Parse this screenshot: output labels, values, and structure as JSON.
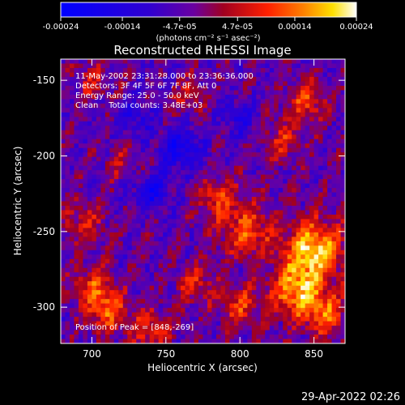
{
  "colorbar": {
    "ticks": [
      "-0.00024",
      "-0.00014",
      "-4.7e-05",
      "4.7e-05",
      "0.00014",
      "0.00024"
    ],
    "unit_label": "(photons cm⁻² s⁻¹ asec⁻²)",
    "range": [
      -0.00024,
      0.00024
    ]
  },
  "footer": {
    "timestamp": "29-Apr-2022 02:26"
  },
  "chart_data": {
    "type": "heatmap",
    "title": "Reconstructed RHESSI Image",
    "xlabel": "Heliocentric X (arcsec)",
    "ylabel": "Heliocentric Y (arcsec)",
    "xlim": [
      679,
      871
    ],
    "ylim": [
      -324,
      -136
    ],
    "xticks": [
      700,
      750,
      800,
      850
    ],
    "yticks": [
      -150,
      -200,
      -250,
      -300
    ],
    "annotations": [
      "11-May-2002 23:31:28.000 to 23:36:36.000",
      "Detectors: 3F 4F 5F 6F 7F 8F, Att 0",
      "Energy Range: 25.0 - 50.0 keV",
      "Clean    Total counts: 3.48E+03"
    ],
    "peak_label": "Position of Peak = [848,-269]",
    "peak": [
      848,
      -269
    ],
    "grid": false,
    "colormap": "blue-purple-red-yellow-white",
    "intensity_regions": [
      {
        "x": 850,
        "y": -262,
        "sigma": 14,
        "value": 0.00024
      },
      {
        "x": 838,
        "y": -290,
        "sigma": 12,
        "value": 0.0002
      },
      {
        "x": 858,
        "y": -305,
        "sigma": 10,
        "value": 0.00016
      },
      {
        "x": 805,
        "y": -250,
        "sigma": 12,
        "value": 0.00015
      },
      {
        "x": 785,
        "y": -228,
        "sigma": 10,
        "value": 0.00012
      },
      {
        "x": 845,
        "y": -165,
        "sigma": 10,
        "value": 0.00013
      },
      {
        "x": 828,
        "y": -190,
        "sigma": 9,
        "value": 0.0001
      },
      {
        "x": 710,
        "y": -302,
        "sigma": 10,
        "value": 0.00016
      },
      {
        "x": 700,
        "y": -285,
        "sigma": 9,
        "value": 0.00012
      },
      {
        "x": 740,
        "y": -315,
        "sigma": 10,
        "value": 0.00012
      },
      {
        "x": 770,
        "y": -285,
        "sigma": 9,
        "value": 0.00011
      },
      {
        "x": 695,
        "y": -245,
        "sigma": 10,
        "value": 0.0001
      },
      {
        "x": 700,
        "y": -150,
        "sigma": 9,
        "value": 9e-05
      },
      {
        "x": 765,
        "y": -160,
        "sigma": 8,
        "value": 8e-05
      },
      {
        "x": 720,
        "y": -205,
        "sigma": 8,
        "value": 7e-05
      },
      {
        "x": 800,
        "y": -300,
        "sigma": 10,
        "value": 0.00012
      },
      {
        "x": 740,
        "y": -225,
        "sigma": 9,
        "value": -0.00012
      },
      {
        "x": 760,
        "y": -195,
        "sigma": 10,
        "value": -0.00014
      },
      {
        "x": 800,
        "y": -175,
        "sigma": 8,
        "value": -0.0001
      },
      {
        "x": 730,
        "y": -175,
        "sigma": 8,
        "value": -0.0001
      }
    ]
  }
}
